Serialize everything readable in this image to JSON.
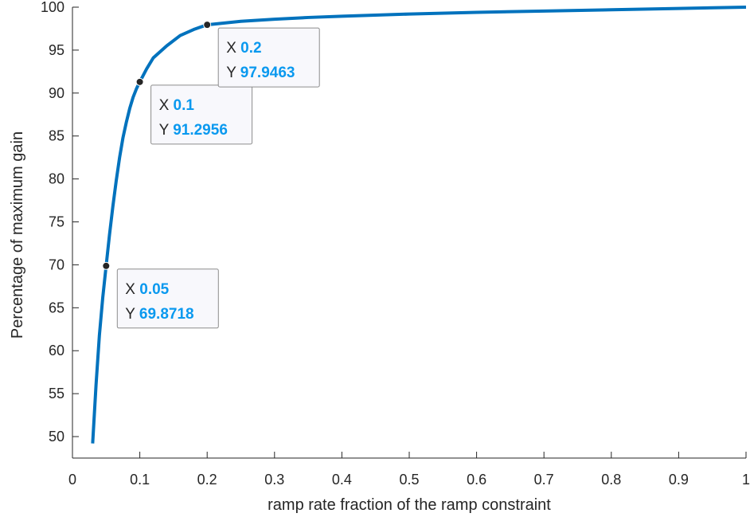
{
  "chart_data": {
    "type": "line",
    "xlabel": "ramp rate fraction of the ramp constraint",
    "ylabel": "Percentage of maximum gain",
    "xlim": [
      0,
      1
    ],
    "ylim": [
      47.5,
      100
    ],
    "xticks": [
      0,
      0.1,
      0.2,
      0.3,
      0.4,
      0.5,
      0.6,
      0.7,
      0.8,
      0.9,
      1
    ],
    "xtick_labels": [
      "0",
      "0.1",
      "0.2",
      "0.3",
      "0.4",
      "0.5",
      "0.6",
      "0.7",
      "0.8",
      "0.9",
      "1"
    ],
    "yticks": [
      50,
      55,
      60,
      65,
      70,
      75,
      80,
      85,
      90,
      95,
      100
    ],
    "ytick_labels": [
      "50",
      "55",
      "60",
      "65",
      "70",
      "75",
      "80",
      "85",
      "90",
      "95",
      "100"
    ],
    "grid": false,
    "series": [
      {
        "color": "#0072BD",
        "x": [
          0.03,
          0.035,
          0.04,
          0.045,
          0.05,
          0.055,
          0.06,
          0.065,
          0.07,
          0.075,
          0.08,
          0.085,
          0.09,
          0.095,
          0.1,
          0.11,
          0.12,
          0.14,
          0.16,
          0.18,
          0.2,
          0.25,
          0.3,
          0.35,
          0.4,
          0.5,
          0.6,
          0.7,
          0.8,
          0.9,
          1.0
        ],
        "y": [
          49.2,
          56.0,
          61.8,
          66.2,
          69.87,
          73.5,
          76.8,
          79.8,
          82.5,
          84.8,
          86.6,
          88.2,
          89.5,
          90.5,
          91.3,
          92.8,
          94.1,
          95.5,
          96.7,
          97.4,
          97.95,
          98.35,
          98.6,
          98.8,
          98.95,
          99.2,
          99.4,
          99.55,
          99.7,
          99.85,
          100.0
        ]
      }
    ],
    "datatips": [
      {
        "x": 0.05,
        "y": 69.8718,
        "x_label": "X",
        "x_value": "0.05",
        "y_label": "Y",
        "y_value": "69.8718"
      },
      {
        "x": 0.1,
        "y": 91.2956,
        "x_label": "X",
        "x_value": "0.1",
        "y_label": "Y",
        "y_value": "91.2956"
      },
      {
        "x": 0.2,
        "y": 97.9463,
        "x_label": "X",
        "x_value": "0.2",
        "y_label": "Y",
        "y_value": "97.9463"
      }
    ]
  }
}
